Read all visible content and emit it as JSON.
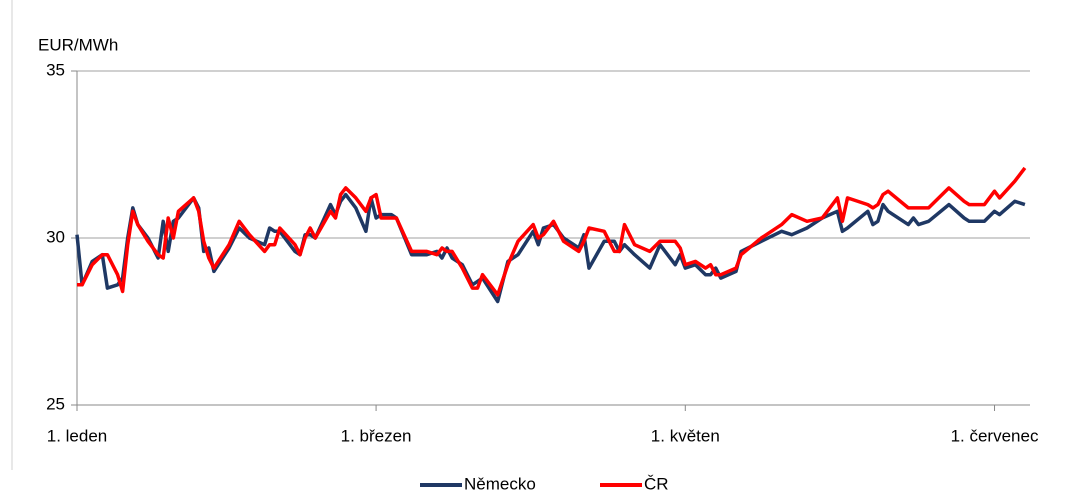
{
  "chart_data": {
    "type": "line",
    "y_label": "EUR/MWh",
    "x": [
      0,
      1,
      3,
      5,
      6,
      8,
      9,
      10,
      11,
      12,
      14,
      16,
      17,
      18,
      19,
      20,
      23,
      24,
      25,
      26,
      27,
      30,
      32,
      34,
      37,
      38,
      39,
      40,
      43,
      44,
      45,
      46,
      47,
      50,
      51,
      52,
      53,
      55,
      57,
      58,
      59,
      60,
      62,
      63,
      66,
      67,
      69,
      71,
      72,
      73,
      74,
      76,
      78,
      79,
      80,
      83,
      85,
      87,
      90,
      91,
      92,
      94,
      96,
      99,
      100,
      101,
      104,
      106,
      107,
      108,
      110,
      113,
      115,
      118,
      119,
      120,
      122,
      124,
      125,
      126,
      127,
      130,
      131,
      135,
      139,
      141,
      144,
      147,
      150,
      151,
      152,
      156,
      157,
      158,
      159,
      160,
      164,
      165,
      166,
      168,
      172,
      175,
      176,
      179,
      181,
      182,
      185,
      187
    ],
    "series": [
      {
        "name": "Německo",
        "color": "#1f3864",
        "values": [
          30.1,
          28.6,
          29.3,
          29.5,
          28.5,
          28.6,
          28.8,
          30.0,
          30.9,
          30.4,
          30.0,
          29.4,
          30.5,
          29.6,
          30.5,
          30.6,
          31.2,
          30.9,
          29.6,
          29.7,
          29.0,
          29.7,
          30.3,
          30.0,
          29.8,
          30.3,
          30.2,
          30.2,
          29.6,
          29.5,
          30.1,
          30.1,
          30.0,
          31.0,
          30.7,
          31.1,
          31.3,
          30.9,
          30.2,
          31.2,
          30.6,
          30.7,
          30.7,
          30.6,
          29.5,
          29.5,
          29.5,
          29.6,
          29.4,
          29.7,
          29.4,
          29.2,
          28.6,
          28.7,
          28.8,
          28.1,
          29.3,
          29.5,
          30.2,
          29.8,
          30.3,
          30.4,
          30.0,
          29.7,
          30.1,
          29.1,
          29.9,
          29.9,
          29.6,
          29.8,
          29.5,
          29.1,
          29.8,
          29.2,
          29.5,
          29.1,
          29.2,
          28.9,
          28.9,
          29.1,
          28.8,
          29.0,
          29.6,
          29.9,
          30.2,
          30.1,
          30.3,
          30.6,
          30.8,
          30.2,
          30.3,
          30.8,
          30.4,
          30.5,
          31.0,
          30.8,
          30.4,
          30.6,
          30.4,
          30.5,
          31.0,
          30.6,
          30.5,
          30.5,
          30.8,
          30.7,
          31.1,
          31.0
        ]
      },
      {
        "name": "ČR",
        "color": "#ff0000",
        "values": [
          28.6,
          28.6,
          29.2,
          29.5,
          29.5,
          28.9,
          28.4,
          29.8,
          30.8,
          30.4,
          29.9,
          29.5,
          29.4,
          30.6,
          30.0,
          30.8,
          31.2,
          30.8,
          29.9,
          29.4,
          29.1,
          29.8,
          30.5,
          30.1,
          29.6,
          29.8,
          29.8,
          30.3,
          29.8,
          29.5,
          30.0,
          30.3,
          30.0,
          30.8,
          30.6,
          31.3,
          31.5,
          31.2,
          30.8,
          31.2,
          31.3,
          30.6,
          30.6,
          30.6,
          29.6,
          29.6,
          29.6,
          29.5,
          29.7,
          29.6,
          29.6,
          29.1,
          28.5,
          28.5,
          28.9,
          28.3,
          29.2,
          29.9,
          30.4,
          30.0,
          30.1,
          30.5,
          29.9,
          29.6,
          29.9,
          30.3,
          30.2,
          29.6,
          29.6,
          30.4,
          29.8,
          29.6,
          29.9,
          29.9,
          29.7,
          29.2,
          29.3,
          29.1,
          29.2,
          28.9,
          28.9,
          29.1,
          29.5,
          30.0,
          30.4,
          30.7,
          30.5,
          30.6,
          31.2,
          30.5,
          31.2,
          31.0,
          30.9,
          31.0,
          31.3,
          31.4,
          30.9,
          30.9,
          30.9,
          30.9,
          31.5,
          31.1,
          31.0,
          31.0,
          31.4,
          31.2,
          31.7,
          32.1
        ]
      }
    ],
    "xlim": [
      0,
      188
    ],
    "xticks": [
      {
        "value": 0,
        "label": "1. leden"
      },
      {
        "value": 59,
        "label": "1. březen"
      },
      {
        "value": 120,
        "label": "1. květen"
      },
      {
        "value": 181,
        "label": "1. červenec"
      }
    ],
    "ylim": [
      25,
      35
    ],
    "yticks": [
      25,
      30,
      35
    ],
    "grid": true,
    "legend": "bottom"
  }
}
